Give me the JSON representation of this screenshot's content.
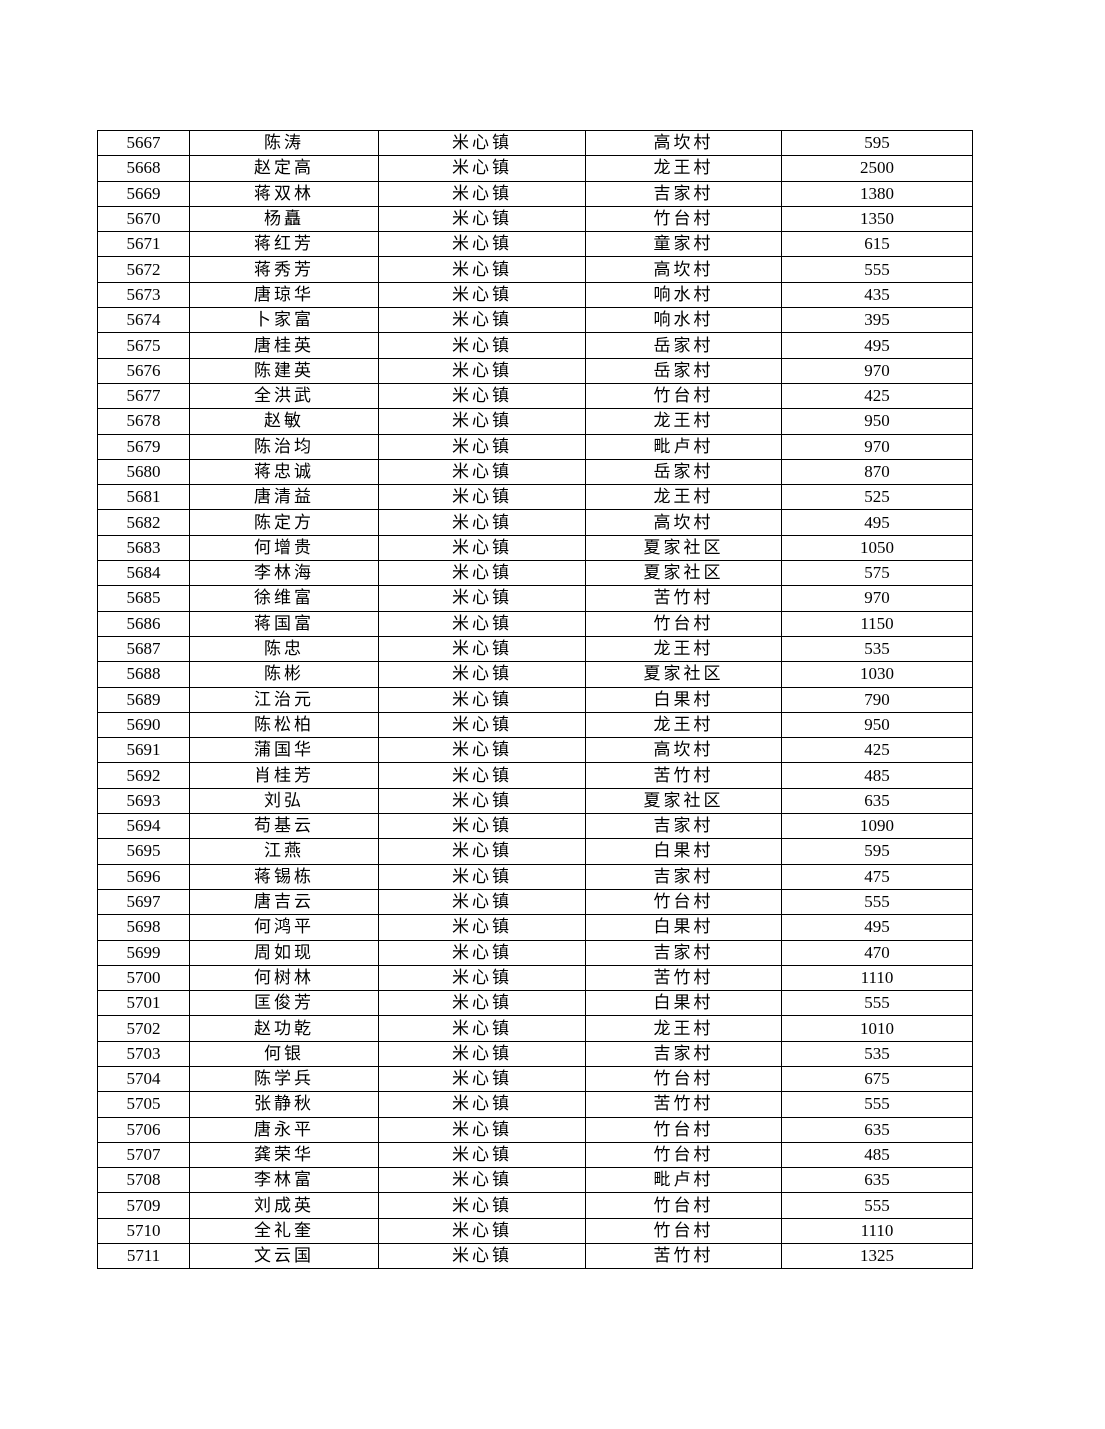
{
  "table": {
    "rows": [
      [
        "5667",
        "陈涛",
        "米心镇",
        "高坎村",
        "595"
      ],
      [
        "5668",
        "赵定高",
        "米心镇",
        "龙王村",
        "2500"
      ],
      [
        "5669",
        "蒋双林",
        "米心镇",
        "吉家村",
        "1380"
      ],
      [
        "5670",
        "杨矗",
        "米心镇",
        "竹台村",
        "1350"
      ],
      [
        "5671",
        "蒋红芳",
        "米心镇",
        "童家村",
        "615"
      ],
      [
        "5672",
        "蒋秀芳",
        "米心镇",
        "高坎村",
        "555"
      ],
      [
        "5673",
        "唐琼华",
        "米心镇",
        "响水村",
        "435"
      ],
      [
        "5674",
        "卜家富",
        "米心镇",
        "响水村",
        "395"
      ],
      [
        "5675",
        "唐桂英",
        "米心镇",
        "岳家村",
        "495"
      ],
      [
        "5676",
        "陈建英",
        "米心镇",
        "岳家村",
        "970"
      ],
      [
        "5677",
        "全洪武",
        "米心镇",
        "竹台村",
        "425"
      ],
      [
        "5678",
        "赵敏",
        "米心镇",
        "龙王村",
        "950"
      ],
      [
        "5679",
        "陈治均",
        "米心镇",
        "毗卢村",
        "970"
      ],
      [
        "5680",
        "蒋忠诚",
        "米心镇",
        "岳家村",
        "870"
      ],
      [
        "5681",
        "唐清益",
        "米心镇",
        "龙王村",
        "525"
      ],
      [
        "5682",
        "陈定方",
        "米心镇",
        "高坎村",
        "495"
      ],
      [
        "5683",
        "何增贵",
        "米心镇",
        "夏家社区",
        "1050"
      ],
      [
        "5684",
        "李林海",
        "米心镇",
        "夏家社区",
        "575"
      ],
      [
        "5685",
        "徐维富",
        "米心镇",
        "苦竹村",
        "970"
      ],
      [
        "5686",
        "蒋国富",
        "米心镇",
        "竹台村",
        "1150"
      ],
      [
        "5687",
        "陈忠",
        "米心镇",
        "龙王村",
        "535"
      ],
      [
        "5688",
        "陈彬",
        "米心镇",
        "夏家社区",
        "1030"
      ],
      [
        "5689",
        "江治元",
        "米心镇",
        "白果村",
        "790"
      ],
      [
        "5690",
        "陈松柏",
        "米心镇",
        "龙王村",
        "950"
      ],
      [
        "5691",
        "蒲国华",
        "米心镇",
        "高坎村",
        "425"
      ],
      [
        "5692",
        "肖桂芳",
        "米心镇",
        "苦竹村",
        "485"
      ],
      [
        "5693",
        "刘弘",
        "米心镇",
        "夏家社区",
        "635"
      ],
      [
        "5694",
        "苟基云",
        "米心镇",
        "吉家村",
        "1090"
      ],
      [
        "5695",
        "江燕",
        "米心镇",
        "白果村",
        "595"
      ],
      [
        "5696",
        "蒋锡栋",
        "米心镇",
        "吉家村",
        "475"
      ],
      [
        "5697",
        "唐吉云",
        "米心镇",
        "竹台村",
        "555"
      ],
      [
        "5698",
        "何鸿平",
        "米心镇",
        "白果村",
        "495"
      ],
      [
        "5699",
        "周如现",
        "米心镇",
        "吉家村",
        "470"
      ],
      [
        "5700",
        "何树林",
        "米心镇",
        "苦竹村",
        "1110"
      ],
      [
        "5701",
        "匡俊芳",
        "米心镇",
        "白果村",
        "555"
      ],
      [
        "5702",
        "赵功乾",
        "米心镇",
        "龙王村",
        "1010"
      ],
      [
        "5703",
        "何银",
        "米心镇",
        "吉家村",
        "535"
      ],
      [
        "5704",
        "陈学兵",
        "米心镇",
        "竹台村",
        "675"
      ],
      [
        "5705",
        "张静秋",
        "米心镇",
        "苦竹村",
        "555"
      ],
      [
        "5706",
        "唐永平",
        "米心镇",
        "竹台村",
        "635"
      ],
      [
        "5707",
        "龚荣华",
        "米心镇",
        "竹台村",
        "485"
      ],
      [
        "5708",
        "李林富",
        "米心镇",
        "毗卢村",
        "635"
      ],
      [
        "5709",
        "刘成英",
        "米心镇",
        "竹台村",
        "555"
      ],
      [
        "5710",
        "全礼奎",
        "米心镇",
        "竹台村",
        "1110"
      ],
      [
        "5711",
        "文云国",
        "米心镇",
        "苦竹村",
        "1325"
      ]
    ]
  }
}
